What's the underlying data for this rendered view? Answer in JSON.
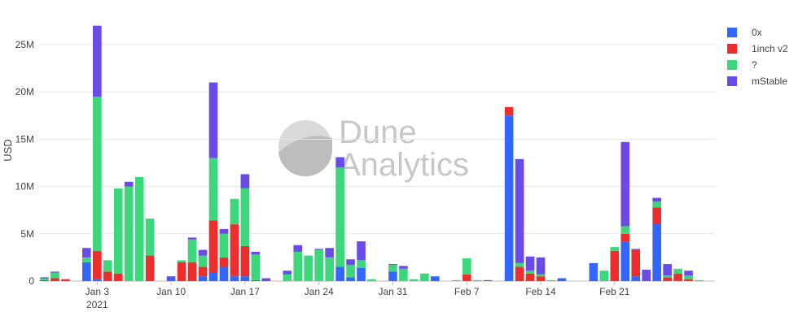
{
  "chart_data": {
    "type": "bar",
    "stacked": true,
    "ylabel": "USD",
    "xlabel": "",
    "ylim": [
      0,
      28000000
    ],
    "y_ticks": [
      0,
      5000000,
      10000000,
      15000000,
      20000000,
      25000000
    ],
    "y_tick_labels": [
      "0",
      "5M",
      "10M",
      "15M",
      "20M",
      "25M"
    ],
    "x_tick_labels": [
      {
        "label": "Jan 3",
        "sub": "2021",
        "date": "2021-01-03"
      },
      {
        "label": "Jan 10",
        "sub": "",
        "date": "2021-01-10"
      },
      {
        "label": "Jan 17",
        "sub": "",
        "date": "2021-01-17"
      },
      {
        "label": "Jan 24",
        "sub": "",
        "date": "2021-01-24"
      },
      {
        "label": "Jan 31",
        "sub": "",
        "date": "2021-01-31"
      },
      {
        "label": "Feb 7",
        "sub": "",
        "date": "2021-02-07"
      },
      {
        "label": "Feb 14",
        "sub": "",
        "date": "2021-02-14"
      },
      {
        "label": "Feb 21",
        "sub": "",
        "date": "2021-02-21"
      }
    ],
    "grid": true,
    "legend_position": "top-right",
    "watermark": {
      "line1": "Dune",
      "line2": "Analytics"
    },
    "series": [
      {
        "name": "0x",
        "color": "#3366ff"
      },
      {
        "name": "1inch v2",
        "color": "#ee2d2d"
      },
      {
        "name": "?",
        "color": "#3dd77b"
      },
      {
        "name": "mStable",
        "color": "#6a4be8"
      }
    ],
    "categories": [
      "2020-12-29",
      "2020-12-30",
      "2020-12-31",
      "2021-01-01",
      "2021-01-02",
      "2021-01-03",
      "2021-01-04",
      "2021-01-05",
      "2021-01-06",
      "2021-01-07",
      "2021-01-08",
      "2021-01-09",
      "2021-01-10",
      "2021-01-11",
      "2021-01-12",
      "2021-01-13",
      "2021-01-14",
      "2021-01-15",
      "2021-01-16",
      "2021-01-17",
      "2021-01-18",
      "2021-01-19",
      "2021-01-20",
      "2021-01-21",
      "2021-01-22",
      "2021-01-23",
      "2021-01-24",
      "2021-01-25",
      "2021-01-26",
      "2021-01-27",
      "2021-01-28",
      "2021-01-29",
      "2021-01-30",
      "2021-01-31",
      "2021-02-01",
      "2021-02-02",
      "2021-02-03",
      "2021-02-04",
      "2021-02-05",
      "2021-02-06",
      "2021-02-07",
      "2021-02-08",
      "2021-02-09",
      "2021-02-10",
      "2021-02-11",
      "2021-02-12",
      "2021-02-13",
      "2021-02-14",
      "2021-02-15",
      "2021-02-16",
      "2021-02-17",
      "2021-02-18",
      "2021-02-19",
      "2021-02-20",
      "2021-02-21",
      "2021-02-22",
      "2021-02-23",
      "2021-02-24",
      "2021-02-25",
      "2021-02-26",
      "2021-02-27",
      "2021-02-28",
      "2021-03-01",
      "2021-03-02"
    ],
    "stacks": [
      [
        0,
        0.1,
        0.2,
        0.1
      ],
      [
        0,
        0.3,
        0.6,
        0.1
      ],
      [
        0,
        0.2,
        0,
        0
      ],
      [
        0,
        0,
        0,
        0
      ],
      [
        2.0,
        0,
        0.5,
        1.0
      ],
      [
        0.2,
        3.0,
        16.3,
        7.5
      ],
      [
        0,
        1.0,
        1.2,
        0
      ],
      [
        0,
        0.8,
        9.0,
        0
      ],
      [
        0,
        0,
        10.0,
        0.5
      ],
      [
        0,
        0,
        11.0,
        0
      ],
      [
        0,
        2.7,
        3.9,
        0
      ],
      [
        0,
        0,
        0,
        0
      ],
      [
        0.3,
        0,
        0,
        0.2
      ],
      [
        0,
        2.0,
        0.2,
        0
      ],
      [
        0,
        2.0,
        2.4,
        0.2
      ],
      [
        0.5,
        1.0,
        1.2,
        0.6
      ],
      [
        0.9,
        5.5,
        6.6,
        8.0
      ],
      [
        1.5,
        1.0,
        2.5,
        0.5
      ],
      [
        0.5,
        5.5,
        2.7,
        0
      ],
      [
        0.5,
        3.2,
        6.1,
        1.5
      ],
      [
        0.1,
        0,
        2.7,
        0.3
      ],
      [
        0,
        0,
        0,
        0.3
      ],
      [
        0,
        0,
        0,
        0
      ],
      [
        0,
        0,
        0.7,
        0.4
      ],
      [
        0,
        0,
        3.1,
        0.7
      ],
      [
        0,
        0,
        2.7,
        0
      ],
      [
        0,
        0,
        3.3,
        0.1
      ],
      [
        0,
        0,
        2.5,
        1.0
      ],
      [
        1.5,
        0,
        10.5,
        1.1
      ],
      [
        0.4,
        0,
        1.3,
        0.6
      ],
      [
        1.4,
        0,
        0.8,
        2.0
      ],
      [
        0,
        0,
        0.2,
        0
      ],
      [
        0,
        0,
        0,
        0
      ],
      [
        1.0,
        0,
        0.7,
        0.1
      ],
      [
        0,
        0,
        1.3,
        0.3
      ],
      [
        0,
        0,
        0.2,
        0
      ],
      [
        0,
        0,
        0.8,
        0
      ],
      [
        0.5,
        0,
        0,
        0
      ],
      [
        0,
        0,
        0,
        0
      ],
      [
        0,
        0,
        0.1,
        0
      ],
      [
        0,
        0.7,
        1.7,
        0
      ],
      [
        0,
        0,
        0.1,
        0
      ],
      [
        0.1,
        0,
        0,
        0
      ],
      [
        0,
        0,
        0,
        0
      ],
      [
        17.5,
        0.9,
        0,
        0
      ],
      [
        0,
        1.5,
        0.4,
        11.0
      ],
      [
        0,
        0.8,
        0.3,
        1.5
      ],
      [
        0,
        0.5,
        0.2,
        1.8
      ],
      [
        0,
        0,
        0.1,
        0
      ],
      [
        0.3,
        0,
        0,
        0
      ],
      [
        0,
        0,
        0,
        0
      ],
      [
        0,
        0,
        0,
        0
      ],
      [
        1.9,
        0,
        0,
        0
      ],
      [
        0,
        0,
        1.1,
        0
      ],
      [
        0,
        3.2,
        0.4,
        0
      ],
      [
        4.2,
        0.8,
        0.8,
        8.9
      ],
      [
        0.5,
        2.8,
        0,
        0.1
      ],
      [
        0,
        0,
        0,
        1.2
      ],
      [
        6.1,
        1.7,
        0.6,
        0.4
      ],
      [
        0,
        0.4,
        0.2,
        1.2
      ],
      [
        0,
        0.8,
        0.5,
        0
      ],
      [
        0,
        0.2,
        0.4,
        0.5
      ],
      [
        0,
        0,
        0.1,
        0
      ],
      [
        0,
        0,
        0,
        0
      ]
    ],
    "stack_units": "millions USD"
  }
}
